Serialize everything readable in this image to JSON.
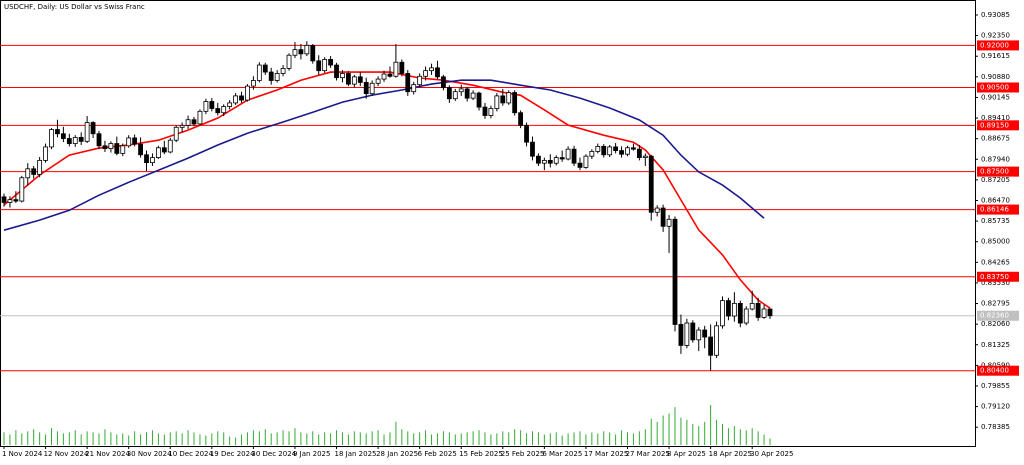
{
  "chart_data": {
    "type": "candlestick",
    "title": "USDCHF, Daily:  US Dollar vs Swiss Franc",
    "categories": [
      "1 Nov 2024",
      null,
      null,
      null,
      null,
      null,
      null,
      "12 Nov 2024",
      null,
      null,
      null,
      null,
      null,
      null,
      "21 Nov 2024",
      null,
      null,
      null,
      null,
      null,
      null,
      "30 Nov 2024",
      null,
      null,
      null,
      null,
      null,
      null,
      "10 Dec 2024",
      null,
      null,
      null,
      null,
      null,
      null,
      "19 Dec 2024",
      null,
      null,
      null,
      null,
      null,
      null,
      "30 Dec 2024",
      null,
      null,
      null,
      null,
      null,
      null,
      "9 Jan 2025",
      null,
      null,
      null,
      null,
      null,
      null,
      "18 Jan 2025",
      null,
      null,
      null,
      null,
      null,
      null,
      "28 Jan 2025",
      null,
      null,
      null,
      null,
      null,
      null,
      "6 Feb 2025",
      null,
      null,
      null,
      null,
      null,
      null,
      "15 Feb 2025",
      null,
      null,
      null,
      null,
      null,
      null,
      "25 Feb 2025",
      null,
      null,
      null,
      null,
      null,
      null,
      "6 Mar 2025",
      null,
      null,
      null,
      null,
      null,
      null,
      "17 Mar 2025",
      null,
      null,
      null,
      null,
      null,
      null,
      "27 Mar 2025",
      null,
      null,
      null,
      null,
      null,
      null,
      "8 Apr 2025",
      null,
      null,
      null,
      null,
      null,
      null,
      "18 Apr 2025",
      null,
      null,
      null,
      null,
      null,
      null,
      "30 Apr 2025",
      null,
      null,
      null
    ],
    "open": [
      0.866,
      0.864,
      0.865,
      0.8645,
      0.8728,
      0.876,
      0.874,
      0.879,
      0.8838,
      0.89,
      0.8885,
      0.8868,
      0.885,
      0.8872,
      0.8858,
      0.8925,
      0.8885,
      0.8842,
      0.8832,
      0.885,
      0.8815,
      0.8842,
      0.887,
      0.8848,
      0.881,
      0.8782,
      0.88,
      0.8835,
      0.882,
      0.8862,
      0.8908,
      0.8915,
      0.8935,
      0.892,
      0.8965,
      0.9,
      0.8975,
      0.896,
      0.8982,
      0.8995,
      0.902,
      0.9005,
      0.9055,
      0.9075,
      0.913,
      0.9105,
      0.9075,
      0.91,
      0.9118,
      0.9165,
      0.9185,
      0.917,
      0.92,
      0.9145,
      0.911,
      0.915,
      0.913,
      0.9085,
      0.91,
      0.9062,
      0.9088,
      0.9068,
      0.9028,
      0.9065,
      0.908,
      0.9098,
      0.909,
      0.914,
      0.91,
      0.9035,
      0.906,
      0.909,
      0.911,
      0.912,
      0.9088,
      0.905,
      0.901,
      0.9035,
      0.9045,
      0.9012,
      0.903,
      0.898,
      0.895,
      0.8975,
      0.902,
      0.8995,
      0.9032,
      0.896,
      0.8915,
      0.8855,
      0.8805,
      0.878,
      0.879,
      0.878,
      0.88,
      0.8795,
      0.883,
      0.878,
      0.8765,
      0.8805,
      0.8822,
      0.884,
      0.881,
      0.8838,
      0.8825,
      0.8812,
      0.8835,
      0.883,
      0.88,
      0.8805,
      0.8605,
      0.862,
      0.8555,
      0.858,
      0.8205,
      0.813,
      0.821,
      0.815,
      0.8185,
      0.816,
      0.8095,
      0.82,
      0.829,
      0.8235,
      0.828,
      0.821,
      0.826,
      0.828,
      0.823,
      0.826
    ],
    "high": [
      0.8672,
      0.8662,
      0.868,
      0.8735,
      0.878,
      0.877,
      0.8802,
      0.885,
      0.8905,
      0.8935,
      0.891,
      0.8885,
      0.888,
      0.889,
      0.8948,
      0.893,
      0.8895,
      0.886,
      0.8858,
      0.8875,
      0.885,
      0.888,
      0.8882,
      0.8872,
      0.8825,
      0.8815,
      0.8842,
      0.886,
      0.887,
      0.8915,
      0.8925,
      0.895,
      0.8945,
      0.8972,
      0.901,
      0.9012,
      0.8995,
      0.899,
      0.9005,
      0.903,
      0.9035,
      0.9062,
      0.909,
      0.914,
      0.9138,
      0.912,
      0.9112,
      0.913,
      0.9172,
      0.9212,
      0.9205,
      0.9215,
      0.9205,
      0.9165,
      0.9158,
      0.9162,
      0.9138,
      0.9112,
      0.9108,
      0.9095,
      0.9105,
      0.9085,
      0.9075,
      0.909,
      0.911,
      0.9125,
      0.9205,
      0.915,
      0.9112,
      0.907,
      0.91,
      0.9125,
      0.9135,
      0.9145,
      0.9095,
      0.9058,
      0.9045,
      0.906,
      0.9052,
      0.904,
      0.9035,
      0.8995,
      0.8985,
      0.903,
      0.9045,
      0.904,
      0.904,
      0.8968,
      0.8925,
      0.8875,
      0.8815,
      0.88,
      0.8812,
      0.8808,
      0.8825,
      0.884,
      0.8842,
      0.88,
      0.8812,
      0.883,
      0.885,
      0.8848,
      0.8845,
      0.8852,
      0.884,
      0.8842,
      0.885,
      0.8845,
      0.8815,
      0.881,
      0.863,
      0.8632,
      0.8595,
      0.859,
      0.824,
      0.8225,
      0.822,
      0.8195,
      0.82,
      0.8205,
      0.8215,
      0.8305,
      0.83,
      0.832,
      0.829,
      0.827,
      0.8325,
      0.83,
      0.8275,
      0.8262
    ],
    "low": [
      0.8625,
      0.8622,
      0.8638,
      0.864,
      0.87,
      0.8725,
      0.873,
      0.8782,
      0.883,
      0.8872,
      0.8855,
      0.884,
      0.8838,
      0.8845,
      0.8852,
      0.887,
      0.883,
      0.882,
      0.8818,
      0.8808,
      0.8805,
      0.8835,
      0.884,
      0.88,
      0.8752,
      0.877,
      0.8795,
      0.8812,
      0.8815,
      0.8855,
      0.889,
      0.8902,
      0.8912,
      0.8915,
      0.8955,
      0.8965,
      0.895,
      0.8948,
      0.8972,
      0.8988,
      0.8995,
      0.9,
      0.9042,
      0.9068,
      0.9095,
      0.906,
      0.9068,
      0.909,
      0.911,
      0.9155,
      0.915,
      0.9162,
      0.9135,
      0.9095,
      0.9102,
      0.912,
      0.9075,
      0.9068,
      0.9055,
      0.905,
      0.9055,
      0.901,
      0.902,
      0.9055,
      0.907,
      0.9085,
      0.9085,
      0.909,
      0.902,
      0.9025,
      0.905,
      0.9075,
      0.9095,
      0.908,
      0.904,
      0.8995,
      0.9002,
      0.902,
      0.9,
      0.9005,
      0.8968,
      0.8938,
      0.894,
      0.8965,
      0.8985,
      0.8988,
      0.895,
      0.8905,
      0.884,
      0.879,
      0.877,
      0.8755,
      0.8765,
      0.8772,
      0.8785,
      0.879,
      0.877,
      0.8755,
      0.876,
      0.8795,
      0.8815,
      0.88,
      0.8802,
      0.8815,
      0.88,
      0.8805,
      0.8825,
      0.879,
      0.877,
      0.8575,
      0.859,
      0.8535,
      0.846,
      0.818,
      0.81,
      0.812,
      0.814,
      0.811,
      0.812,
      0.804,
      0.8085,
      0.819,
      0.822,
      0.8215,
      0.8195,
      0.8202,
      0.8255,
      0.8218,
      0.8225,
      0.8225
    ],
    "close": [
      0.864,
      0.865,
      0.8645,
      0.8728,
      0.876,
      0.874,
      0.879,
      0.8838,
      0.89,
      0.8885,
      0.8868,
      0.885,
      0.8872,
      0.8858,
      0.8925,
      0.8885,
      0.8842,
      0.8832,
      0.885,
      0.8815,
      0.8842,
      0.887,
      0.8848,
      0.881,
      0.8782,
      0.88,
      0.8835,
      0.882,
      0.8862,
      0.8908,
      0.8915,
      0.8935,
      0.892,
      0.8965,
      0.9,
      0.8975,
      0.896,
      0.8982,
      0.8995,
      0.902,
      0.9005,
      0.9055,
      0.9075,
      0.913,
      0.9105,
      0.9075,
      0.91,
      0.9118,
      0.9165,
      0.9185,
      0.917,
      0.92,
      0.9145,
      0.911,
      0.915,
      0.913,
      0.9085,
      0.91,
      0.9062,
      0.9088,
      0.9068,
      0.9028,
      0.9065,
      0.908,
      0.9098,
      0.909,
      0.914,
      0.91,
      0.9035,
      0.906,
      0.909,
      0.911,
      0.912,
      0.9088,
      0.905,
      0.901,
      0.9035,
      0.9045,
      0.9012,
      0.903,
      0.898,
      0.895,
      0.8975,
      0.902,
      0.8995,
      0.9032,
      0.896,
      0.8915,
      0.8855,
      0.8805,
      0.878,
      0.879,
      0.878,
      0.88,
      0.8795,
      0.883,
      0.878,
      0.8765,
      0.8805,
      0.8822,
      0.884,
      0.881,
      0.8838,
      0.8825,
      0.8812,
      0.8835,
      0.883,
      0.88,
      0.8805,
      0.8605,
      0.862,
      0.8555,
      0.858,
      0.8205,
      0.813,
      0.821,
      0.815,
      0.8185,
      0.816,
      0.8095,
      0.82,
      0.829,
      0.8235,
      0.828,
      0.821,
      0.826,
      0.828,
      0.823,
      0.826,
      0.8236
    ],
    "volume": [
      12,
      10,
      14,
      11,
      13,
      15,
      12,
      10,
      16,
      13,
      11,
      12,
      14,
      10,
      13,
      12,
      11,
      15,
      12,
      10,
      11,
      9,
      13,
      10,
      12,
      14,
      11,
      10,
      12,
      13,
      11,
      14,
      12,
      10,
      9,
      11,
      13,
      12,
      8,
      7,
      10,
      12,
      14,
      13,
      15,
      11,
      12,
      14,
      13,
      16,
      12,
      11,
      13,
      10,
      12,
      11,
      14,
      12,
      10,
      13,
      12,
      11,
      13,
      14,
      10,
      12,
      22,
      15,
      13,
      11,
      12,
      14,
      10,
      11,
      13,
      12,
      10,
      11,
      12,
      13,
      14,
      12,
      10,
      11,
      13,
      12,
      15,
      14,
      11,
      13,
      12,
      10,
      11,
      12,
      9,
      11,
      12,
      13,
      10,
      12,
      11,
      13,
      12,
      10,
      14,
      12,
      11,
      13,
      15,
      25,
      22,
      28,
      30,
      36,
      26,
      24,
      20,
      18,
      22,
      38,
      24,
      20,
      16,
      18,
      15,
      14,
      16,
      13,
      10,
      6
    ],
    "volume_color": "#33aa33",
    "up_color": "#ffffff",
    "down_color": "#000000",
    "candle_stroke": "#000000",
    "lines": [
      {
        "color": "#ff0000",
        "x": [
          0,
          6,
          11,
          16,
          21,
          26,
          31,
          36,
          41,
          46,
          50,
          55,
          60,
          65,
          70,
          74,
          79,
          84,
          87,
          91,
          95,
          101,
          106,
          108,
          111,
          114,
          117,
          121,
          124,
          127,
          129
        ],
        "values": [
          0.8631,
          0.8738,
          0.8809,
          0.8834,
          0.8845,
          0.8862,
          0.8898,
          0.8941,
          0.9005,
          0.9041,
          0.9076,
          0.9105,
          0.9105,
          0.9105,
          0.9084,
          0.9076,
          0.9058,
          0.9033,
          0.9022,
          0.897,
          0.8916,
          0.888,
          0.8855,
          0.8827,
          0.8756,
          0.8649,
          0.8542,
          0.8453,
          0.8364,
          0.8292,
          0.8263
        ]
      },
      {
        "color": "#1a1a8c",
        "x": [
          0,
          6,
          11,
          16,
          21,
          26,
          31,
          36,
          41,
          47,
          52,
          57,
          62,
          67,
          72,
          77,
          82,
          87,
          92,
          97,
          102,
          107,
          111,
          114,
          117,
          121,
          124,
          128
        ],
        "values": [
          0.8541,
          0.8577,
          0.8612,
          0.8666,
          0.8712,
          0.8755,
          0.8798,
          0.8845,
          0.8887,
          0.8927,
          0.8962,
          0.8998,
          0.9023,
          0.9041,
          0.9062,
          0.9076,
          0.9076,
          0.9058,
          0.9041,
          0.9012,
          0.8977,
          0.8934,
          0.888,
          0.8809,
          0.8749,
          0.8702,
          0.8656,
          0.8584
        ]
      }
    ],
    "level_color": "#ff0000",
    "levels": [
      {
        "value": 0.92,
        "label": "0.92000"
      },
      {
        "value": 0.905,
        "label": "0.90500"
      },
      {
        "value": 0.8915,
        "label": "0.89150"
      },
      {
        "value": 0.875,
        "label": "0.87500"
      },
      {
        "value": 0.86146,
        "label": "0.86146"
      },
      {
        "value": 0.8375,
        "label": "0.83750"
      },
      {
        "value": 0.804,
        "label": "0.80400"
      }
    ],
    "current_price": {
      "value": 0.8236,
      "label": "0.82360"
    },
    "ylim": [
      0.7775,
      0.9362
    ],
    "yticks": [
      0.93085,
      {
        "value": 0.9235,
        "label": "0.92350"
      },
      0.91615,
      {
        "value": 0.9088,
        "label": "0.90880"
      },
      0.90145,
      {
        "value": 0.8941,
        "label": "0.89410"
      },
      0.88675,
      {
        "value": 0.8794,
        "label": "0.87940"
      },
      0.87205,
      {
        "value": 0.8647,
        "label": "0.86470"
      },
      0.85735,
      {
        "value": 0.85,
        "label": "0.85000"
      },
      0.84265,
      {
        "value": 0.8353,
        "label": "0.83530"
      },
      0.82795,
      {
        "value": 0.8206,
        "label": "0.82060"
      },
      0.81325,
      {
        "value": 0.8059,
        "label": "0.80590"
      },
      0.79855,
      {
        "value": 0.7912,
        "label": "0.79120"
      },
      0.78385
    ]
  }
}
